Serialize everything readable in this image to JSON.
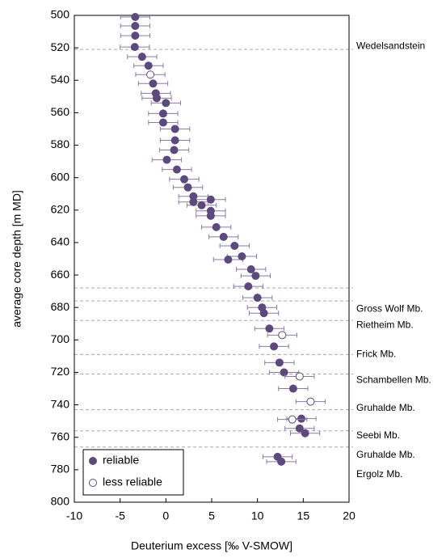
{
  "chart_data": {
    "type": "scatter",
    "xlabel": "Deuterium excess [‰ V-SMOW]",
    "ylabel": "average core depth [m MD]",
    "xlim": [
      -10,
      20
    ],
    "xticks": [
      -10,
      -5,
      0,
      5,
      10,
      15,
      20
    ],
    "ylim": [
      800,
      500
    ],
    "yticks": [
      500,
      520,
      540,
      560,
      580,
      600,
      620,
      640,
      660,
      680,
      700,
      720,
      740,
      760,
      780,
      800
    ],
    "series": [
      {
        "name": "reliable",
        "color": "#5c4a7d",
        "marker": "filled",
        "x": [
          -3.35,
          -3.35,
          -3.35,
          -3.4,
          -2.6,
          -1.9,
          -1.4,
          -1.1,
          -1.0,
          0.0,
          -0.3,
          -0.3,
          1.0,
          1.0,
          0.9,
          0.1,
          1.2,
          2.0,
          2.4,
          3.0,
          3.0,
          3.9,
          4.9,
          4.9,
          4.9,
          5.5,
          6.3,
          7.5,
          8.3,
          6.8,
          9.3,
          9.8,
          9.0,
          10.0,
          10.5,
          10.7,
          11.3,
          11.8,
          12.4,
          12.9,
          13.9,
          14.8,
          14.6,
          15.2,
          12.2,
          12.6
        ],
        "y": [
          501,
          506.5,
          512.5,
          519.5,
          525.5,
          531,
          542,
          548,
          551,
          554,
          560.5,
          566,
          570,
          577,
          583,
          589,
          595,
          601,
          606,
          611.5,
          615,
          617,
          613.5,
          620.5,
          623.5,
          630.5,
          636.5,
          642,
          648.5,
          650.5,
          656.5,
          660.5,
          667,
          674,
          680,
          683.5,
          693,
          704,
          714,
          720,
          730,
          748.5,
          754.5,
          757.5,
          772,
          775
        ],
        "xerr": [
          1.6,
          1.6,
          1.6,
          1.6,
          1.6,
          1.6,
          1.6,
          1.6,
          1.6,
          1.6,
          1.6,
          1.6,
          1.6,
          1.6,
          1.6,
          1.6,
          1.6,
          1.6,
          1.6,
          1.6,
          1.6,
          1.6,
          1.6,
          1.6,
          1.6,
          1.6,
          1.6,
          1.6,
          1.6,
          1.6,
          1.6,
          1.6,
          1.6,
          1.6,
          1.6,
          1.6,
          1.6,
          1.6,
          1.6,
          1.6,
          1.6,
          1.6,
          1.6,
          1.6,
          1.6,
          1.6
        ]
      },
      {
        "name": "less reliable",
        "color": "#5c4a7d",
        "marker": "open",
        "x": [
          -1.7,
          12.7,
          14.6,
          15.8,
          13.8
        ],
        "y": [
          536.5,
          697,
          722.5,
          738,
          749
        ],
        "xerr": [
          1.6,
          1.6,
          1.6,
          1.6,
          1.6
        ]
      }
    ],
    "hlines": [
      521,
      668,
      676,
      688,
      709,
      721,
      743,
      756,
      766
    ],
    "annotations": [
      {
        "text": "Wedelsandstein",
        "y": 519
      },
      {
        "text": "Gross Wolf Mb.",
        "y": 681
      },
      {
        "text": "Rietheim Mb.",
        "y": 691
      },
      {
        "text": "Frick Mb.",
        "y": 709
      },
      {
        "text": "Schambellen Mb.",
        "y": 725
      },
      {
        "text": "Gruhalde Mb.",
        "y": 742
      },
      {
        "text": "Seebi Mb.",
        "y": 759
      },
      {
        "text": "Gruhalde Mb.",
        "y": 771
      },
      {
        "text": "Ergolz Mb.",
        "y": 783
      }
    ],
    "legend": "lower left"
  }
}
